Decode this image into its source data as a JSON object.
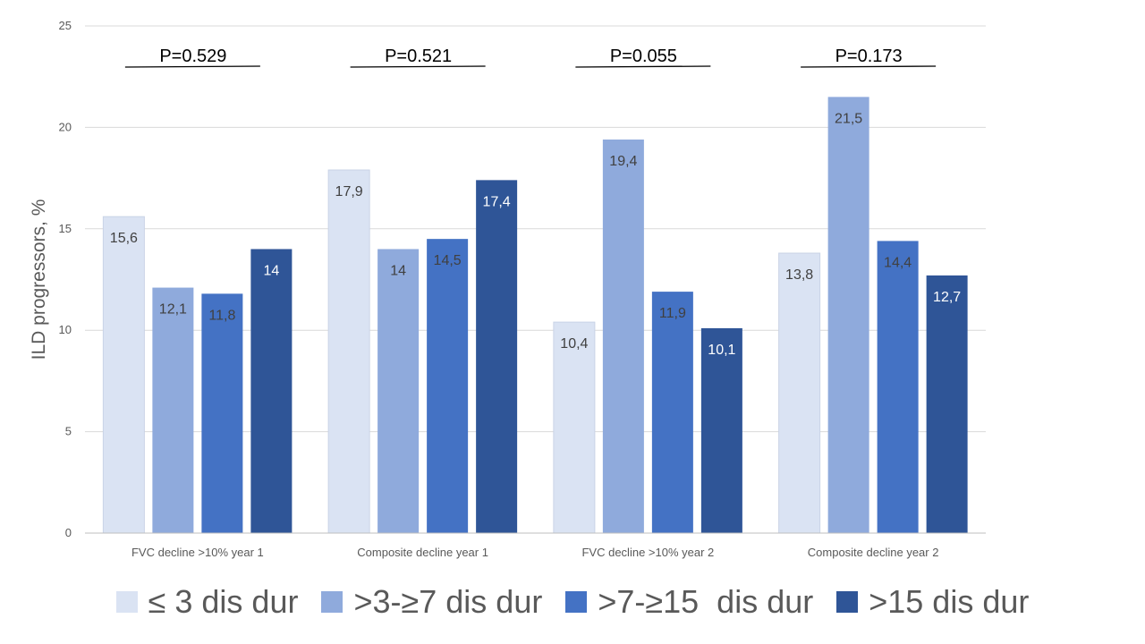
{
  "chart_data": {
    "type": "bar",
    "categories": [
      "FVC decline >10% year 1",
      "Composite decline year 1",
      "FVC decline >10% year 2",
      "Composite decline year 2"
    ],
    "series": [
      {
        "name": "≤ 3 dis dur",
        "values": [
          15.6,
          17.9,
          10.4,
          13.8
        ],
        "labels": [
          "15,6",
          "17,9",
          "10,4",
          "13,8"
        ],
        "color": "#dae3f3",
        "label_color": "#404040"
      },
      {
        "name": ">3-≥7 dis dur",
        "values": [
          12.1,
          14,
          19.4,
          21.5
        ],
        "labels": [
          "12,1",
          "14",
          "19,4",
          "21,5"
        ],
        "color": "#8faadc",
        "label_color": "#404040"
      },
      {
        "name": ">7-≥15  dis dur",
        "values": [
          11.8,
          14.5,
          11.9,
          14.4
        ],
        "labels": [
          "11,8",
          "14,5",
          "11,9",
          "14,4"
        ],
        "color": "#4472c4",
        "label_color": "#404040"
      },
      {
        "name": ">15 dis dur",
        "values": [
          14,
          17.4,
          10.1,
          12.7
        ],
        "labels": [
          "14",
          "17,4",
          "10,1",
          "12,7"
        ],
        "color": "#2f5597",
        "label_color": "#ffffff"
      }
    ],
    "title": "",
    "xlabel": "",
    "ylabel": "ILD progressors, %",
    "ylim": [
      0,
      25
    ],
    "yticks": [
      0,
      5,
      10,
      15,
      20,
      25
    ],
    "grid": true,
    "legend_position": "bottom",
    "annotations": [
      "P=0.529",
      "P=0.521",
      "P=0.055",
      "P=0.173"
    ]
  }
}
